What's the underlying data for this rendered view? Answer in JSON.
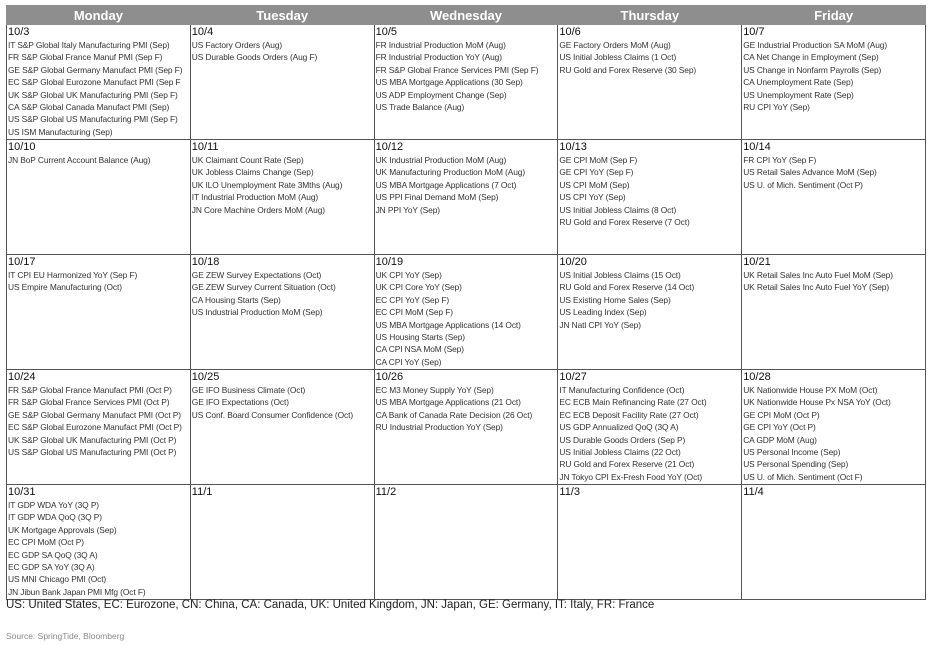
{
  "header": {
    "days": [
      "Monday",
      "Tuesday",
      "Wednesday",
      "Thursday",
      "Friday"
    ]
  },
  "weeks": [
    [
      {
        "date": "10/3",
        "events": [
          "IT S&P Global Italy Manufacturing PMI (Sep)",
          "FR S&P Global France Manuf PMI (Sep F)",
          "GE S&P Global Germany Manufact PMI (Sep F)",
          "EC S&P Global Eurozone Manufact PMI (Sep F",
          "UK S&P Global UK Manufacturing PMI (Sep F)",
          "CA S&P Global Canada Manufact PMI (Sep)",
          "US S&P Global US Manufacturing PMI (Sep F)",
          "US ISM Manufacturing (Sep)"
        ]
      },
      {
        "date": "10/4",
        "events": [
          "US Factory Orders (Aug)",
          "US Durable Goods Orders (Aug F)"
        ]
      },
      {
        "date": "10/5",
        "events": [
          "FR Industrial Production MoM (Aug)",
          "FR Industrial Production YoY (Aug)",
          "FR S&P Global France Services PMI (Sep F)",
          "US MBA Mortgage Applications (30 Sep)",
          "US ADP Employment Change (Sep)",
          "US Trade Balance (Aug)"
        ]
      },
      {
        "date": "10/6",
        "events": [
          "GE Factory Orders MoM (Aug)",
          "US Initial Jobless Claims (1 Oct)",
          "RU Gold and Forex Reserve (30 Sep)"
        ]
      },
      {
        "date": "10/7",
        "events": [
          "GE Industrial Production SA MoM (Aug)",
          "CA Net Change in Employment (Sep)",
          "US Change in Nonfarm Payrolls (Sep)",
          "CA Unemployment Rate (Sep)",
          "US Unemployment Rate (Sep)",
          "RU CPI YoY (Sep)"
        ]
      }
    ],
    [
      {
        "date": "10/10",
        "events": [
          "JN BoP Current Account Balance (Aug)"
        ]
      },
      {
        "date": "10/11",
        "events": [
          "UK Claimant Count Rate (Sep)",
          "UK Jobless Claims Change (Sep)",
          "UK ILO Unemployment Rate 3Mths (Aug)",
          "IT Industrial Production MoM (Aug)",
          "JN Core Machine Orders MoM (Aug)"
        ]
      },
      {
        "date": "10/12",
        "events": [
          "UK Industrial Production MoM (Aug)",
          "UK Manufacturing Production MoM (Aug)",
          "US MBA Mortgage Applications (7 Oct)",
          "US PPI Final Demand MoM (Sep)",
          "JN PPI YoY (Sep)"
        ]
      },
      {
        "date": "10/13",
        "events": [
          "GE CPI MoM (Sep F)",
          "GE CPI YoY (Sep F)",
          "US CPI MoM (Sep)",
          "US CPI YoY (Sep)",
          "US Initial Jobless Claims (8 Oct)",
          "RU Gold and Forex Reserve (7 Oct)"
        ]
      },
      {
        "date": "10/14",
        "events": [
          "FR CPI YoY (Sep F)",
          "US Retail Sales Advance MoM (Sep)",
          "US U. of Mich. Sentiment (Oct P)"
        ]
      }
    ],
    [
      {
        "date": "10/17",
        "events": [
          "IT CPI EU Harmonized YoY (Sep F)",
          "US Empire Manufacturing (Oct)"
        ]
      },
      {
        "date": "10/18",
        "events": [
          "GE ZEW Survey Expectations (Oct)",
          "GE ZEW Survey Current Situation (Oct)",
          "CA Housing Starts (Sep)",
          "US Industrial Production MoM (Sep)"
        ]
      },
      {
        "date": "10/19",
        "events": [
          "UK CPI YoY (Sep)",
          "UK CPI Core YoY (Sep)",
          "EC CPI YoY (Sep F)",
          "EC CPI MoM (Sep F)",
          "US MBA Mortgage Applications (14 Oct)",
          "US Housing Starts (Sep)",
          "CA CPI NSA MoM (Sep)",
          "CA CPI YoY (Sep)"
        ]
      },
      {
        "date": "10/20",
        "events": [
          "US Initial Jobless Claims (15 Oct)",
          "RU Gold and Forex Reserve (14 Oct)",
          "US Existing Home Sales (Sep)",
          "US Leading Index (Sep)",
          "JN Natl CPI YoY (Sep)"
        ]
      },
      {
        "date": "10/21",
        "events": [
          "UK Retail Sales Inc Auto Fuel MoM (Sep)",
          "UK Retail Sales Inc Auto Fuel YoY (Sep)"
        ]
      }
    ],
    [
      {
        "date": "10/24",
        "events": [
          "FR S&P Global France Manufact PMI (Oct P)",
          "FR S&P Global France Services PMI (Oct P)",
          "GE S&P Global Germany Manufact PMI (Oct P)",
          "EC S&P Global Eurozone Manufact PMI (Oct P)",
          "UK S&P Global UK Manufacturing PMI (Oct P)",
          "US S&P Global US Manufacturing PMI (Oct P)"
        ]
      },
      {
        "date": "10/25",
        "events": [
          "GE IFO Business Climate (Oct)",
          "GE IFO Expectations (Oct)",
          "US Conf. Board Consumer Confidence (Oct)"
        ]
      },
      {
        "date": "10/26",
        "events": [
          "EC M3 Money Supply YoY (Sep)",
          "US MBA Mortgage Applications (21 Oct)",
          "CA Bank of Canada Rate Decision (26 Oct)",
          "RU Industrial Production YoY (Sep)"
        ]
      },
      {
        "date": "10/27",
        "events": [
          "IT Manufacturing Confidence (Oct)",
          "EC ECB Main Refinancing Rate (27 Oct)",
          "EC ECB Deposit Facility Rate (27 Oct)",
          "US GDP Annualized QoQ (3Q A)",
          "US Durable Goods Orders (Sep P)",
          "US Initial Jobless Claims (22 Oct)",
          "RU Gold and Forex Reserve (21 Oct)",
          "JN Tokyo CPI Ex-Fresh Food YoY (Oct)"
        ]
      },
      {
        "date": "10/28",
        "events": [
          "UK Nationwide House PX MoM (Oct)",
          "UK Nationwide House Px NSA YoY (Oct)",
          "GE CPI MoM (Oct P)",
          "GE CPI YoY (Oct P)",
          "CA GDP MoM (Aug)",
          "US Personal Income (Sep)",
          "US Personal Spending (Sep)",
          "US U. of Mich. Sentiment (Oct F)"
        ]
      }
    ],
    [
      {
        "date": "10/31",
        "events": [
          "IT GDP WDA YoY (3Q P)",
          "IT GDP WDA QoQ (3Q P)",
          "UK Mortgage Approvals (Sep)",
          "EC CPI MoM (Oct P)",
          "EC GDP SA QoQ (3Q A)",
          "EC GDP SA YoY (3Q A)",
          "US MNI Chicago PMI (Oct)",
          "JN Jibun Bank Japan PMI Mfg (Oct F)"
        ]
      },
      {
        "date": "11/1"
      },
      {
        "date": "11/2"
      },
      {
        "date": "11/3"
      },
      {
        "date": "11/4"
      }
    ]
  ],
  "footnote": "US: United States, EC: Eurozone, CN: China, CA: Canada, UK: United Kingdom, JN: Japan, GE: Germany, IT: Italy, FR: France",
  "source": "Source: SpringTide, Bloomberg"
}
